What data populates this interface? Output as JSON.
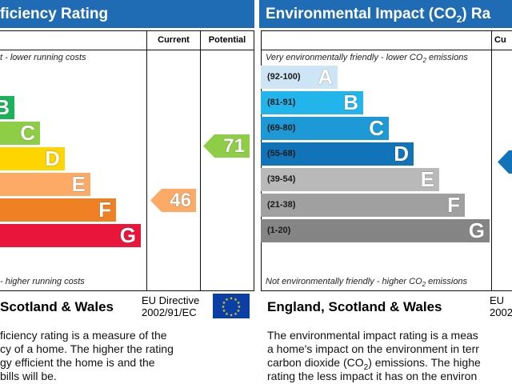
{
  "left": {
    "title": "ficiency Rating",
    "col_current": "Current",
    "col_potential": "Potential",
    "top_note": "t - lower running costs",
    "bottom_note": "- higher running costs",
    "bands": [
      {
        "letter": "B",
        "color": "#19b459"
      },
      {
        "letter": "C",
        "color": "#8dce46"
      },
      {
        "letter": "D",
        "color": "#ffd500"
      },
      {
        "letter": "E",
        "color": "#fcaa65"
      },
      {
        "letter": "F",
        "color": "#ef8023"
      },
      {
        "letter": "G",
        "color": "#e9153b"
      }
    ],
    "current_value": "46",
    "current_color": "#fcaa65",
    "potential_value": "71",
    "potential_color": "#8dce46",
    "footer": "Scotland & Wales",
    "directive_line1": "EU Directive",
    "directive_line2": "2002/91/EC",
    "desc_lines": [
      "ficiency rating is a measure of the",
      "cy of a home. The higher the rating",
      "gy efficient the home is and the",
      "bills will be."
    ]
  },
  "right": {
    "title": "Environmental Impact (CO",
    "title_sub": "2",
    "title_end": ") Ra",
    "col_current": "Cu",
    "top_note": "Very environmentally friendly - lower CO",
    "top_note_end": " emissions",
    "bottom_note": "Not environmentally friendly - higher CO",
    "bottom_note_end": " emissions",
    "note_sub": "2",
    "bands": [
      {
        "range": "(92-100)",
        "letter": "A",
        "color": "#cde5f5"
      },
      {
        "range": "(81-91)",
        "letter": "B",
        "color": "#22b5ec"
      },
      {
        "range": "(69-80)",
        "letter": "C",
        "color": "#1d9ad6"
      },
      {
        "range": "(55-68)",
        "letter": "D",
        "color": "#1174b9"
      },
      {
        "range": "(39-54)",
        "letter": "E",
        "color": "#b9b9b9"
      },
      {
        "range": "(21-38)",
        "letter": "F",
        "color": "#a0a0a0"
      },
      {
        "range": "(1-20)",
        "letter": "G",
        "color": "#858585"
      }
    ],
    "current_color": "#1174b9",
    "footer": "England, Scotland & Wales",
    "directive_line1": "EU",
    "directive_line2": "2002",
    "desc_lines": [
      "The environmental impact rating is a meas",
      "a home's impact on the environment in terr",
      "carbon dioxide (CO",
      "rating the less impact it has on the environ"
    ],
    "desc_line3_sub": "2",
    "desc_line3_end": ") emissions. The highe"
  }
}
